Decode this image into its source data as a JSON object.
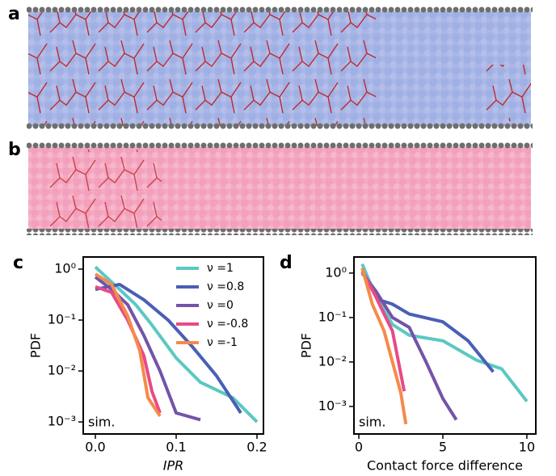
{
  "images": [
    {
      "label": "a"
    },
    {
      "label": "b"
    }
  ],
  "chart_data": [
    {
      "type": "line",
      "label": "c",
      "ylabel": "PDF",
      "xlabel": "IPR",
      "annotation": "sim.",
      "xlim": [
        -0.015,
        0.208
      ],
      "ylim": [
        0.00058,
        1.73
      ],
      "yscale": "log",
      "xticks": [
        {
          "value": 0,
          "label": "0.0"
        },
        0.1,
        0.2
      ],
      "yticks": [
        {
          "value": 1,
          "label": "10⁰"
        },
        {
          "value": 0.1,
          "label": "10⁻¹"
        },
        {
          "value": 0.01,
          "label": "10⁻²"
        },
        {
          "value": 0.001,
          "label": "10⁻³"
        }
      ],
      "legend": "upper right",
      "series": [
        {
          "name": "ν =1",
          "color": "#5bc8c3",
          "x": [
            0.0,
            0.03,
            0.05,
            0.07,
            0.1,
            0.13,
            0.17,
            0.2
          ],
          "values": [
            1.1,
            0.4,
            0.2,
            0.08,
            0.018,
            0.006,
            0.003,
            0.001
          ]
        },
        {
          "name": "ν =0.8",
          "color": "#4a5fb5",
          "x": [
            0.0,
            0.03,
            0.06,
            0.09,
            0.12,
            0.15,
            0.18
          ],
          "values": [
            0.4,
            0.5,
            0.25,
            0.1,
            0.03,
            0.008,
            0.0015
          ]
        },
        {
          "name": "ν =0",
          "color": "#7354a8",
          "x": [
            0.0,
            0.02,
            0.04,
            0.06,
            0.08,
            0.1,
            0.13
          ],
          "values": [
            0.7,
            0.4,
            0.2,
            0.05,
            0.01,
            0.0015,
            0.0011
          ]
        },
        {
          "name": "ν =-0.8",
          "color": "#e84a86",
          "x": [
            0.0,
            0.02,
            0.04,
            0.06,
            0.07,
            0.08
          ],
          "values": [
            0.45,
            0.35,
            0.1,
            0.02,
            0.004,
            0.0015
          ]
        },
        {
          "name": "ν =-1",
          "color": "#f58a4b",
          "x": [
            0.0,
            0.02,
            0.04,
            0.055,
            0.065,
            0.08
          ],
          "values": [
            0.8,
            0.5,
            0.12,
            0.025,
            0.003,
            0.0013
          ]
        }
      ]
    },
    {
      "type": "line",
      "label": "d",
      "ylabel": "PDF",
      "xlabel": "Contact force difference",
      "annotation": "sim.",
      "xlim": [
        -0.29,
        10.53
      ],
      "ylim": [
        0.00024,
        2.3
      ],
      "yscale": "log",
      "xticks": [
        0,
        5,
        10
      ],
      "yticks": [
        {
          "value": 1,
          "label": "10⁰"
        },
        {
          "value": 0.1,
          "label": "10⁻¹"
        },
        {
          "value": 0.01,
          "label": "10⁻²"
        },
        {
          "value": 0.001,
          "label": "10⁻³"
        }
      ],
      "series": [
        {
          "color": "#5bc8c3",
          "x": [
            0.2,
            1,
            2,
            3,
            5,
            7,
            8.5,
            10
          ],
          "values": [
            1.6,
            0.3,
            0.07,
            0.04,
            0.03,
            0.011,
            0.007,
            0.0013
          ]
        },
        {
          "color": "#4a5fb5",
          "x": [
            0.2,
            1.2,
            2,
            3,
            5,
            6.5,
            8
          ],
          "values": [
            1.1,
            0.25,
            0.2,
            0.12,
            0.08,
            0.03,
            0.006
          ]
        },
        {
          "color": "#7354a8",
          "x": [
            0.2,
            1,
            2,
            3,
            4,
            5,
            5.8
          ],
          "values": [
            1,
            0.4,
            0.1,
            0.06,
            0.01,
            0.0015,
            0.0005
          ]
        },
        {
          "color": "#e84a86",
          "x": [
            0.2,
            1,
            1.5,
            2,
            2.7
          ],
          "values": [
            1.1,
            0.3,
            0.12,
            0.05,
            0.0022
          ]
        },
        {
          "color": "#f58a4b",
          "x": [
            0.2,
            0.8,
            1.5,
            2,
            2.5,
            2.8
          ],
          "values": [
            1.3,
            0.2,
            0.05,
            0.01,
            0.002,
            0.0004
          ]
        }
      ]
    }
  ]
}
